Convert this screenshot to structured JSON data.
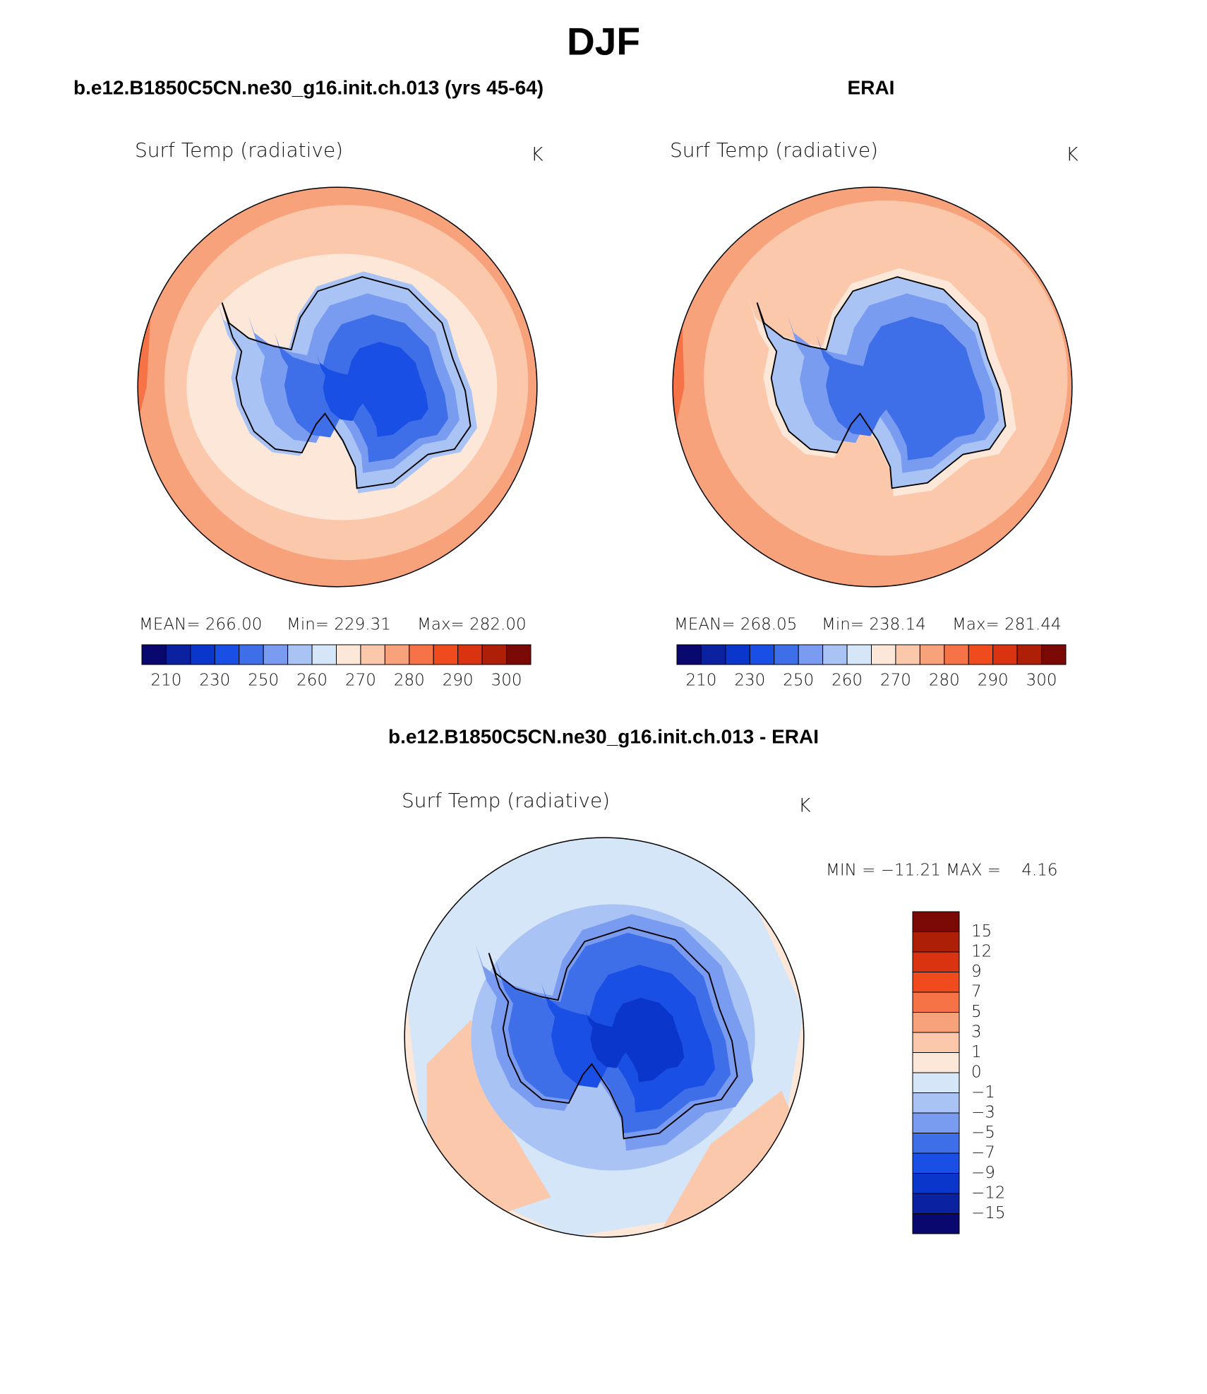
{
  "title": "DJF",
  "panels": [
    {
      "title": "b.e12.B1850C5CN.ne30_g16.init.ch.013 (yrs 45-64)",
      "variable": "Surf Temp (radiative)",
      "units": "K",
      "stats": [
        "MEAN= 266.00",
        "Min= 229.31",
        "Max= 282.00"
      ],
      "colorbar": {
        "colors": [
          "#08086e",
          "#0a22a0",
          "#0a36cc",
          "#1a4fe6",
          "#3f6fe8",
          "#7a9cf0",
          "#a9c3f5",
          "#d6e6f9",
          "#fde7d8",
          "#fbc8ac",
          "#f8a27c",
          "#f57347",
          "#ef4b1c",
          "#d93311",
          "#ae1f08",
          "#7a0905"
        ],
        "labels": [
          "210",
          "230",
          "250",
          "260",
          "270",
          "280",
          "290",
          "300"
        ]
      }
    },
    {
      "title": "ERAI",
      "variable": "Surf Temp (radiative)",
      "units": "K",
      "stats": [
        "MEAN= 268.05",
        "Min= 238.14",
        "Max= 281.44"
      ],
      "colorbar": {
        "colors": [
          "#08086e",
          "#0a22a0",
          "#0a36cc",
          "#1a4fe6",
          "#3f6fe8",
          "#7a9cf0",
          "#a9c3f5",
          "#d6e6f9",
          "#fde7d8",
          "#fbc8ac",
          "#f8a27c",
          "#f57347",
          "#ef4b1c",
          "#d93311",
          "#ae1f08",
          "#7a0905"
        ],
        "labels": [
          "210",
          "230",
          "250",
          "260",
          "270",
          "280",
          "290",
          "300"
        ]
      }
    }
  ],
  "difference": {
    "title": "b.e12.B1850C5CN.ne30_g16.init.ch.013 - ERAI",
    "variable": "Surf Temp (radiative)",
    "units": "K",
    "stats": "MIN = −11.21 MAX =    4.16",
    "colorbar": {
      "colors": [
        "#7a0905",
        "#ae1f08",
        "#d93311",
        "#ef4b1c",
        "#f57347",
        "#f8a27c",
        "#fbc8ac",
        "#fde7d8",
        "#d6e6f9",
        "#a9c3f5",
        "#7a9cf0",
        "#3f6fe8",
        "#1a4fe6",
        "#0a36cc",
        "#0a22a0",
        "#08086e"
      ],
      "labels": [
        "15",
        "12",
        "9",
        "7",
        "5",
        "3",
        "1",
        "0",
        "−1",
        "−3",
        "−5",
        "−7",
        "−9",
        "−12",
        "−15"
      ]
    }
  }
}
